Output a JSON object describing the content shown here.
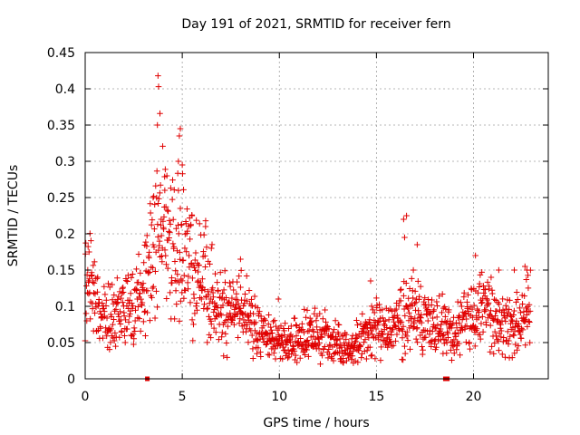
{
  "chart_data": {
    "type": "scatter",
    "title": "Day 191 of 2021, SRMTID for receiver fern",
    "xlabel": "GPS time / hours",
    "ylabel": "SRMTID / TECUs",
    "xlim": [
      0,
      23.85
    ],
    "ylim": [
      0,
      0.45
    ],
    "xticks": [
      0,
      5,
      10,
      15,
      20
    ],
    "xtick_labels": [
      "0",
      "5",
      "10",
      "15",
      "20"
    ],
    "yticks": [
      0,
      0.05,
      0.1,
      0.15,
      0.2,
      0.25,
      0.3,
      0.35,
      0.4,
      0.45
    ],
    "ytick_labels": [
      "0",
      "0.05",
      "0.1",
      "0.15",
      "0.2",
      "0.25",
      "0.3",
      "0.35",
      "0.4",
      "0.45"
    ],
    "grid": true,
    "marker": "+",
    "color": "#e00000",
    "gap_markers_x": [
      3.2,
      18.55,
      18.65
    ],
    "trend": [
      [
        0.0,
        0.125
      ],
      [
        0.3,
        0.13
      ],
      [
        0.6,
        0.11
      ],
      [
        1.0,
        0.085
      ],
      [
        1.5,
        0.08
      ],
      [
        2.0,
        0.095
      ],
      [
        2.5,
        0.11
      ],
      [
        3.0,
        0.11
      ],
      [
        3.5,
        0.17
      ],
      [
        4.0,
        0.21
      ],
      [
        4.5,
        0.18
      ],
      [
        5.0,
        0.19
      ],
      [
        5.5,
        0.16
      ],
      [
        6.0,
        0.14
      ],
      [
        6.5,
        0.12
      ],
      [
        7.0,
        0.095
      ],
      [
        7.5,
        0.09
      ],
      [
        8.0,
        0.095
      ],
      [
        8.5,
        0.08
      ],
      [
        9.0,
        0.07
      ],
      [
        9.5,
        0.055
      ],
      [
        10.0,
        0.05
      ],
      [
        11.0,
        0.055
      ],
      [
        12.0,
        0.06
      ],
      [
        13.0,
        0.05
      ],
      [
        13.5,
        0.045
      ],
      [
        14.0,
        0.05
      ],
      [
        14.5,
        0.065
      ],
      [
        15.0,
        0.07
      ],
      [
        15.5,
        0.065
      ],
      [
        16.0,
        0.075
      ],
      [
        16.5,
        0.09
      ],
      [
        17.0,
        0.085
      ],
      [
        17.5,
        0.08
      ],
      [
        18.0,
        0.075
      ],
      [
        18.5,
        0.065
      ],
      [
        19.0,
        0.065
      ],
      [
        19.5,
        0.08
      ],
      [
        20.0,
        0.095
      ],
      [
        20.5,
        0.1
      ],
      [
        21.0,
        0.085
      ],
      [
        21.5,
        0.07
      ],
      [
        22.0,
        0.07
      ],
      [
        22.5,
        0.085
      ],
      [
        22.8,
        0.1
      ]
    ],
    "peaks": [
      [
        3.75,
        0.418
      ],
      [
        3.78,
        0.403
      ],
      [
        3.85,
        0.366
      ],
      [
        3.72,
        0.35
      ],
      [
        4.9,
        0.345
      ],
      [
        4.85,
        0.335
      ],
      [
        4.8,
        0.3
      ],
      [
        5.0,
        0.295
      ],
      [
        16.55,
        0.225
      ],
      [
        16.4,
        0.22
      ],
      [
        16.45,
        0.195
      ],
      [
        17.1,
        0.185
      ],
      [
        20.1,
        0.17
      ],
      [
        8.0,
        0.165
      ],
      [
        0.2,
        0.175
      ],
      [
        3.5,
        0.25
      ],
      [
        4.1,
        0.26
      ],
      [
        5.5,
        0.225
      ],
      [
        6.2,
        0.21
      ],
      [
        6.5,
        0.18
      ],
      [
        21.3,
        0.15
      ],
      [
        22.1,
        0.15
      ],
      [
        22.65,
        0.155
      ],
      [
        22.75,
        0.15
      ],
      [
        14.7,
        0.135
      ],
      [
        16.9,
        0.15
      ],
      [
        9.95,
        0.11
      ],
      [
        12.35,
        0.095
      ]
    ]
  }
}
